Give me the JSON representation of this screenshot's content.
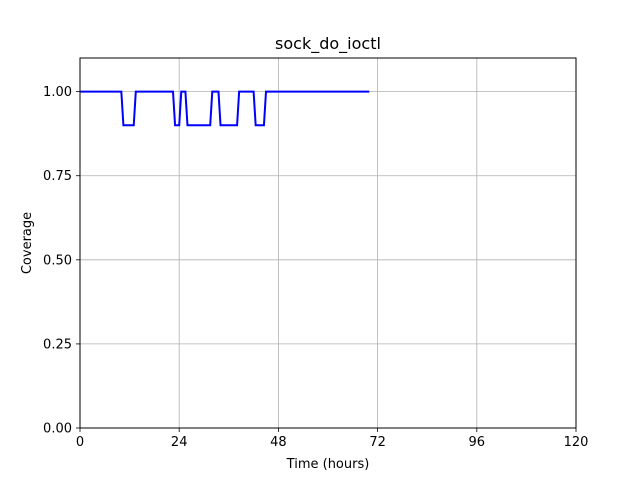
{
  "chart_data": {
    "type": "line",
    "title": "sock_do_ioctl",
    "xlabel": "Time (hours)",
    "ylabel": "Coverage",
    "xlim": [
      0,
      120
    ],
    "ylim": [
      0,
      1.1
    ],
    "xticks": [
      0,
      24,
      48,
      72,
      96,
      120
    ],
    "xtick_labels": [
      "0",
      "24",
      "48",
      "72",
      "96",
      "120"
    ],
    "yticks": [
      0,
      0.25,
      0.5,
      0.75,
      1.0
    ],
    "ytick_labels": [
      "0.00",
      "0.25",
      "0.50",
      "0.75",
      "1.00"
    ],
    "grid": true,
    "series": [
      {
        "color": "#0000ff",
        "x": [
          0,
          10,
          10.5,
          13,
          13.5,
          22.5,
          23,
          24,
          24.5,
          25.5,
          26,
          31.5,
          32,
          33.5,
          34,
          38,
          38.5,
          42,
          42.5,
          44.5,
          45,
          70
        ],
        "y": [
          1.0,
          1.0,
          0.9,
          0.9,
          1.0,
          1.0,
          0.9,
          0.9,
          1.0,
          1.0,
          0.9,
          0.9,
          1.0,
          1.0,
          0.9,
          0.9,
          1.0,
          1.0,
          0.9,
          0.9,
          1.0,
          1.0
        ]
      }
    ]
  }
}
